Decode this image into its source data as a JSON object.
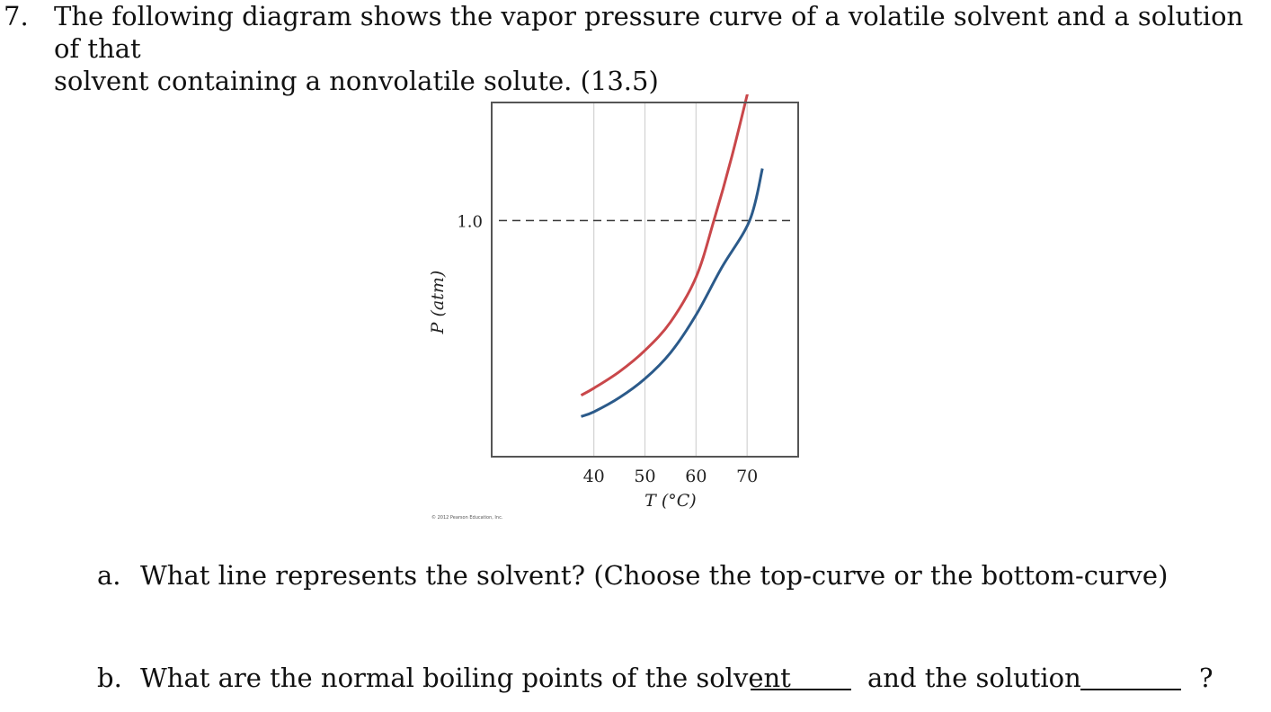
{
  "question": {
    "number": "7.",
    "line1": "The following diagram shows the vapor pressure curve of a volatile solvent and a solution of that",
    "line2": "solvent containing a nonvolatile solute. (13.5)"
  },
  "chart_data": {
    "type": "line",
    "xlabel": "T (°C)",
    "ylabel": "P (atm)",
    "x_ticks": [
      "40",
      "50",
      "60",
      "70"
    ],
    "x_tick_values": [
      40,
      50,
      60,
      70
    ],
    "y_tick_label": "1.0",
    "y_tick_value": 1.0,
    "xlim": [
      20,
      80
    ],
    "ylim": [
      0,
      1.5
    ],
    "grid": "vertical gridlines at x ticks; dashed reference line at P = 1.0",
    "series": [
      {
        "color": "#c9474a",
        "points": [
          [
            37.5,
            0.26
          ],
          [
            40,
            0.29
          ],
          [
            45,
            0.36
          ],
          [
            50,
            0.45
          ],
          [
            55,
            0.57
          ],
          [
            60,
            0.76
          ],
          [
            63.5,
            1.0
          ],
          [
            67,
            1.27
          ],
          [
            71,
            1.62
          ]
        ]
      },
      {
        "color": "#2b5a8a",
        "points": [
          [
            37.5,
            0.17
          ],
          [
            40,
            0.19
          ],
          [
            45,
            0.25
          ],
          [
            50,
            0.33
          ],
          [
            55,
            0.44
          ],
          [
            60,
            0.6
          ],
          [
            65,
            0.8
          ],
          [
            70.5,
            1.0
          ],
          [
            73,
            1.22
          ]
        ]
      }
    ],
    "credit": "© 2012 Pearson Education, Inc."
  },
  "part_a": {
    "letter": "a.",
    "text": "What line represents the solvent? (Choose the top-curve or the bottom-curve)"
  },
  "part_b": {
    "letter": "b.",
    "text1": "What are the normal boiling points of the solvent",
    "text2": "and the solution",
    "text3": "?"
  }
}
